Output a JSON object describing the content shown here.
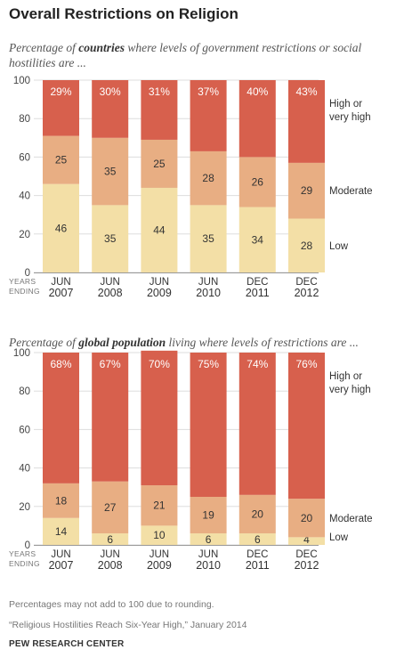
{
  "title": "Overall Restrictions on Religion",
  "note": "Percentages may not add to 100 due to rounding.",
  "citation": "“Religious Hostilities Reach Six-Year High,” January 2014",
  "source": "PEW RESEARCH CENTER",
  "colors": {
    "high": "#d7604d",
    "moderate": "#e8ae83",
    "low": "#f3dfa6",
    "label_on_high": "#ffffff",
    "label_other": "#333333"
  },
  "chart_data": [
    {
      "type": "bar",
      "stacked": true,
      "subtitle_pre": "Percentage of ",
      "subtitle_bold": "countries",
      "subtitle_post": " where levels of government restrictions or social hostilities are ...",
      "years_label": [
        "YEARS",
        "ENDING"
      ],
      "categories": [
        [
          "JUN",
          "2007"
        ],
        [
          "JUN",
          "2008"
        ],
        [
          "JUN",
          "2009"
        ],
        [
          "JUN",
          "2010"
        ],
        [
          "DEC",
          "2011"
        ],
        [
          "DEC",
          "2012"
        ]
      ],
      "series": [
        {
          "name": "Low",
          "key": "low",
          "values": [
            46,
            35,
            44,
            35,
            34,
            28
          ]
        },
        {
          "name": "Moderate",
          "key": "moderate",
          "values": [
            25,
            35,
            25,
            28,
            26,
            29
          ]
        },
        {
          "name": "High or very high",
          "key": "high",
          "values": [
            29,
            30,
            31,
            37,
            40,
            43
          ]
        }
      ],
      "labels": {
        "low": [
          "46",
          "35",
          "44",
          "35",
          "34",
          "28"
        ],
        "moderate": [
          "25",
          "35",
          "25",
          "28",
          "26",
          "29"
        ],
        "high": [
          "29%",
          "30%",
          "31%",
          "37%",
          "40%",
          "43%"
        ]
      },
      "legend": {
        "high": [
          "High or",
          "very high"
        ],
        "moderate": [
          "Moderate"
        ],
        "low": [
          "Low"
        ]
      },
      "yticks": [
        "0",
        "20",
        "40",
        "60",
        "80",
        "100"
      ],
      "ylim": [
        0,
        100
      ]
    },
    {
      "type": "bar",
      "stacked": true,
      "subtitle_pre": "Percentage of ",
      "subtitle_bold": "global population",
      "subtitle_post": " living where levels of restrictions are ...",
      "years_label": [
        "YEARS",
        "ENDING"
      ],
      "categories": [
        [
          "JUN",
          "2007"
        ],
        [
          "JUN",
          "2008"
        ],
        [
          "JUN",
          "2009"
        ],
        [
          "JUN",
          "2010"
        ],
        [
          "DEC",
          "2011"
        ],
        [
          "DEC",
          "2012"
        ]
      ],
      "series": [
        {
          "name": "Low",
          "key": "low",
          "values": [
            14,
            6,
            10,
            6,
            6,
            4
          ]
        },
        {
          "name": "Moderate",
          "key": "moderate",
          "values": [
            18,
            27,
            21,
            19,
            20,
            20
          ]
        },
        {
          "name": "High or very high",
          "key": "high",
          "values": [
            68,
            67,
            70,
            75,
            74,
            76
          ]
        }
      ],
      "labels": {
        "low": [
          "14",
          "6",
          "10",
          "6",
          "6",
          "4"
        ],
        "moderate": [
          "18",
          "27",
          "21",
          "19",
          "20",
          "20"
        ],
        "high": [
          "68%",
          "67%",
          "70%",
          "75%",
          "74%",
          "76%"
        ]
      },
      "legend": {
        "high": [
          "High or",
          "very high"
        ],
        "moderate": [
          "Moderate"
        ],
        "low": [
          "Low"
        ]
      },
      "yticks": [
        "0",
        "20",
        "40",
        "60",
        "80",
        "100"
      ],
      "ylim": [
        0,
        100
      ]
    }
  ]
}
